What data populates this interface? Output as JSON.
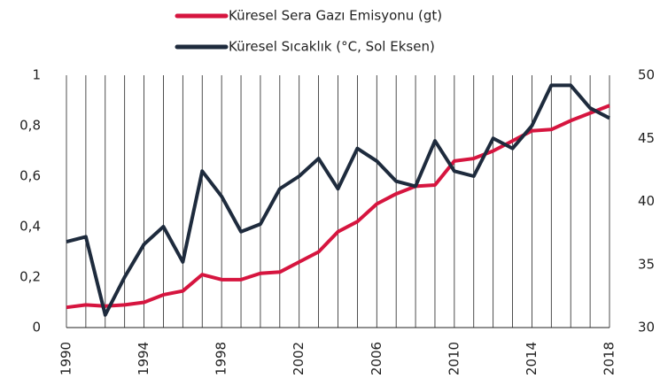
{
  "chart_data": {
    "type": "line",
    "x": [
      1990,
      1991,
      1992,
      1993,
      1994,
      1995,
      1996,
      1997,
      1998,
      1999,
      2000,
      2001,
      2002,
      2003,
      2004,
      2005,
      2006,
      2007,
      2008,
      2009,
      2010,
      2011,
      2012,
      2013,
      2014,
      2015,
      2016,
      2017,
      2018
    ],
    "series": [
      {
        "name": "Küresel Sera Gazı Emisyonu (gt)",
        "color": "#d6153f",
        "axis": "y2",
        "values": [
          31.6,
          31.8,
          31.7,
          31.8,
          32.0,
          32.6,
          32.9,
          34.2,
          33.8,
          33.8,
          34.3,
          34.4,
          35.2,
          36.0,
          37.6,
          38.4,
          39.8,
          40.6,
          41.2,
          41.3,
          43.2,
          43.4,
          44.0,
          44.8,
          45.6,
          45.7,
          46.4,
          47.0,
          47.6
        ]
      },
      {
        "name": "Küresel Sıcaklık (°C, Sol Eksen)",
        "color": "#1e2b3d",
        "values": [
          0.34,
          0.36,
          0.05,
          0.2,
          0.33,
          0.4,
          0.26,
          0.62,
          0.52,
          0.38,
          0.41,
          0.55,
          0.6,
          0.67,
          0.55,
          0.71,
          0.66,
          0.58,
          0.56,
          0.74,
          0.62,
          0.6,
          0.75,
          0.71,
          0.8,
          0.96,
          0.96,
          0.87,
          0.83
        ]
      }
    ],
    "xlim": [
      1990,
      2018
    ],
    "xticks": [
      1990,
      1994,
      1998,
      2002,
      2006,
      2010,
      2014,
      2018
    ],
    "ylim": [
      0,
      1
    ],
    "yticks": [
      0,
      {
        "value": 0.2,
        "label": "0,2"
      },
      {
        "value": 0.4,
        "label": "0,4"
      },
      {
        "value": 0.6,
        "label": "0,6"
      },
      {
        "value": 0.8,
        "label": "0,8"
      },
      1
    ],
    "y2lim": [
      30,
      50
    ],
    "y2ticks": [
      30,
      35,
      40,
      45,
      50
    ],
    "grid": true,
    "legend": "top"
  }
}
